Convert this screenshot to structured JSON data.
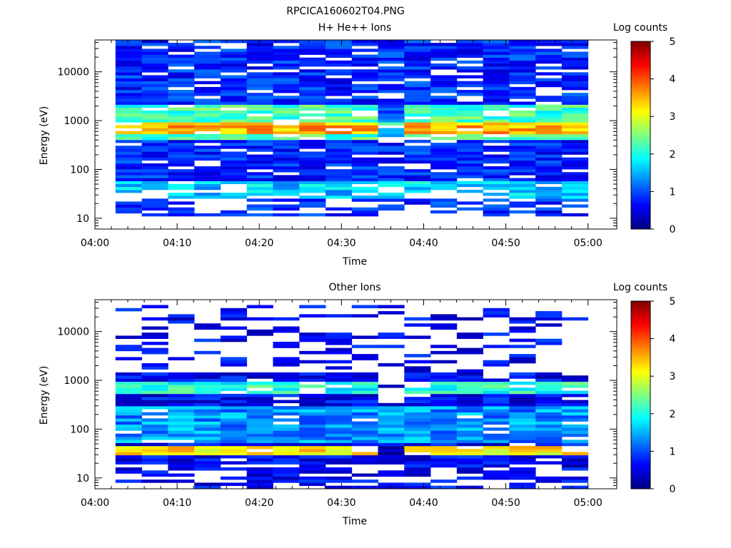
{
  "page_title": "RPCICA160602T04.PNG",
  "chart_data": [
    {
      "type": "heatmap",
      "title": "H+ He++ Ions",
      "xlabel": "Time",
      "ylabel": "Energy (eV)",
      "x_ticks": [
        "04:00",
        "04:10",
        "04:20",
        "04:30",
        "04:40",
        "04:50",
        "05:00"
      ],
      "x_range_minutes": [
        0,
        63.5
      ],
      "y_scale": "log",
      "y_range": [
        6,
        45000
      ],
      "y_ticks": [
        {
          "value": 10,
          "label": "10"
        },
        {
          "value": 100,
          "label": "100"
        },
        {
          "value": 1000,
          "label": "1000"
        },
        {
          "value": 10000,
          "label": "10000"
        }
      ],
      "colorbar": {
        "label": "Log counts",
        "min": 0,
        "max": 5,
        "ticks": [
          "0",
          "1",
          "2",
          "3",
          "4",
          "5"
        ]
      },
      "data_time_range_minutes": [
        2.5,
        60
      ],
      "data_energy_range": [
        11,
        45000
      ],
      "pattern": {
        "peak_band_eV": [
          550,
          900
        ],
        "peak_level": 3.5,
        "halo_band_eV": [
          400,
          2000
        ],
        "low_band_eV": [
          25,
          55
        ],
        "low_level": 1.2,
        "background_level": 0.4,
        "sparse_below_eV": 40,
        "sparse_above_eV": 2500
      }
    },
    {
      "type": "heatmap",
      "title": "Other Ions",
      "xlabel": "Time",
      "ylabel": "Energy (eV)",
      "x_ticks": [
        "04:00",
        "04:10",
        "04:20",
        "04:30",
        "04:40",
        "04:50",
        "05:00"
      ],
      "x_range_minutes": [
        0,
        63.5
      ],
      "y_scale": "log",
      "y_range": [
        6,
        45000
      ],
      "y_ticks": [
        {
          "value": 10,
          "label": "10"
        },
        {
          "value": 100,
          "label": "100"
        },
        {
          "value": 1000,
          "label": "1000"
        },
        {
          "value": 10000,
          "label": "10000"
        }
      ],
      "colorbar": {
        "label": "Log counts",
        "min": 0,
        "max": 5,
        "ticks": [
          "0",
          "1",
          "2",
          "3",
          "4",
          "5"
        ]
      },
      "data_time_range_minutes": [
        2.5,
        60
      ],
      "data_energy_range": [
        6,
        35000
      ],
      "pattern": {
        "peak_band_eV": [
          30,
          45
        ],
        "peak_level": 3.2,
        "halo_band_eV": [
          550,
          1000
        ],
        "halo_level": 2.0,
        "low_band_eV": [
          50,
          300
        ],
        "low_level": 0.9,
        "background_level": 0.2,
        "sparse_below_eV": 20,
        "sparse_above_eV": 1500
      }
    }
  ]
}
